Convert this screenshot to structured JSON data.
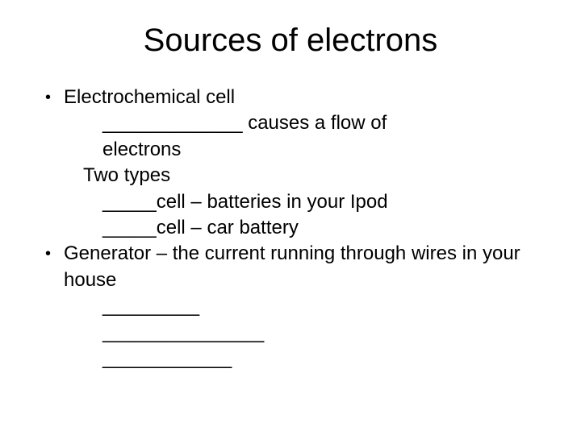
{
  "title": "Sources of electrons",
  "bullet1": {
    "heading": "Electrochemical cell",
    "line1": "_____________ causes a flow of",
    "line2": "electrons",
    "subheading": "Two types",
    "type1": "_____cell – batteries in your Ipod",
    "type2": "_____cell – car battery"
  },
  "bullet2": {
    "heading": "Generator – the current running through wires in your house",
    "blank1": "_________",
    "blank2": "_______________",
    "blank3": "____________"
  },
  "style": {
    "background_color": "#ffffff",
    "text_color": "#000000",
    "title_fontsize": 40,
    "body_fontsize": 24,
    "font_family": "Arial"
  }
}
